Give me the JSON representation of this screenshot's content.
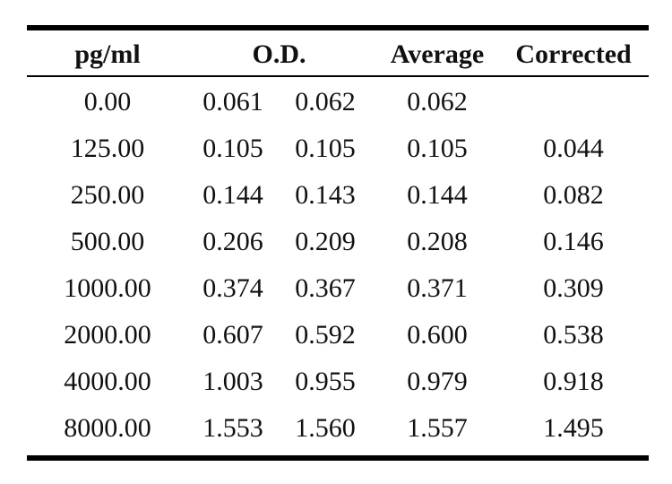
{
  "table": {
    "headers": {
      "pg_ml": "pg/ml",
      "od": "O.D.",
      "average": "Average",
      "corrected": "Corrected"
    },
    "rows": [
      {
        "pg_ml": "0.00",
        "od1": "0.061",
        "od2": "0.062",
        "average": "0.062",
        "corrected": ""
      },
      {
        "pg_ml": "125.00",
        "od1": "0.105",
        "od2": "0.105",
        "average": "0.105",
        "corrected": "0.044"
      },
      {
        "pg_ml": "250.00",
        "od1": "0.144",
        "od2": "0.143",
        "average": "0.144",
        "corrected": "0.082"
      },
      {
        "pg_ml": "500.00",
        "od1": "0.206",
        "od2": "0.209",
        "average": "0.208",
        "corrected": "0.146"
      },
      {
        "pg_ml": "1000.00",
        "od1": "0.374",
        "od2": "0.367",
        "average": "0.371",
        "corrected": "0.309"
      },
      {
        "pg_ml": "2000.00",
        "od1": "0.607",
        "od2": "0.592",
        "average": "0.600",
        "corrected": "0.538"
      },
      {
        "pg_ml": "4000.00",
        "od1": "1.003",
        "od2": "0.955",
        "average": "0.979",
        "corrected": "0.918"
      },
      {
        "pg_ml": "8000.00",
        "od1": "1.553",
        "od2": "1.560",
        "average": "1.557",
        "corrected": "1.495"
      }
    ]
  }
}
